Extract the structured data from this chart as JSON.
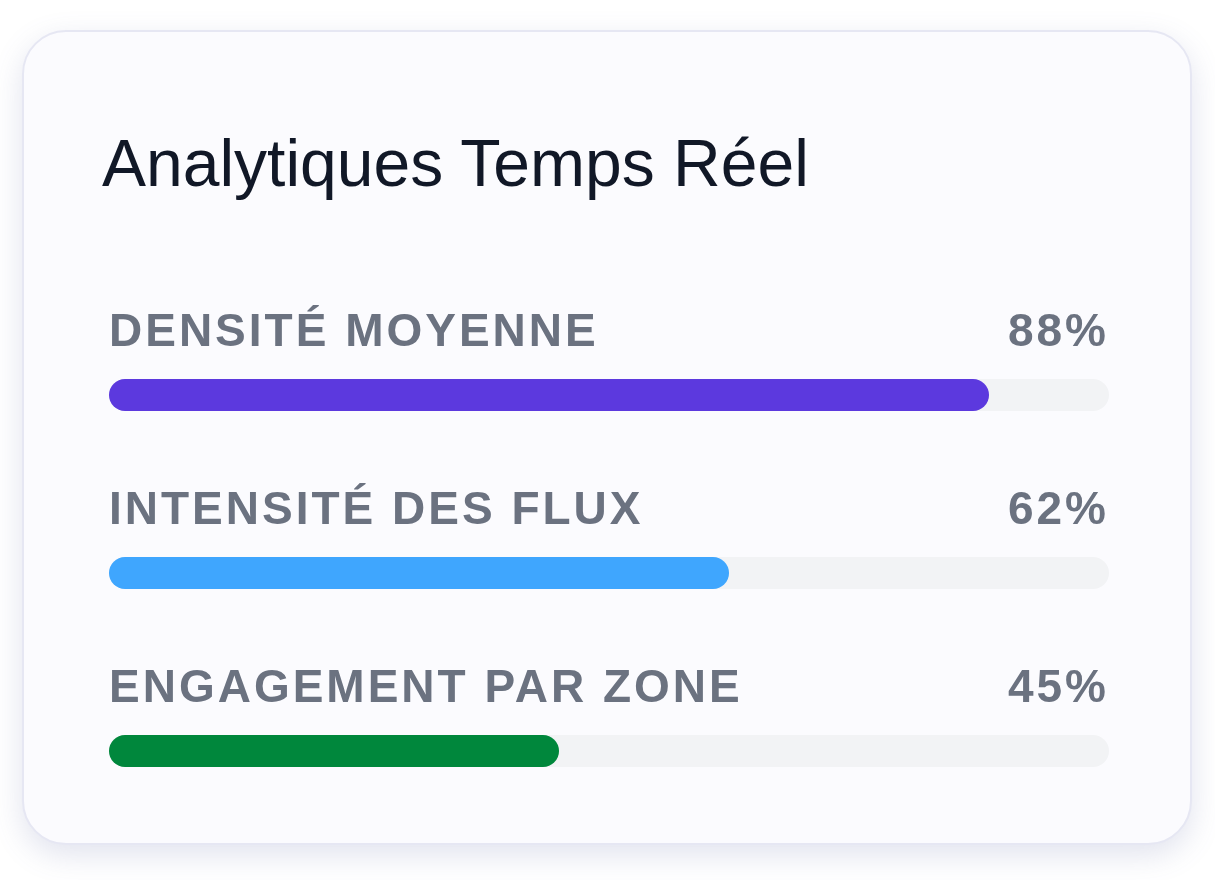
{
  "chart_data": {
    "type": "bar",
    "orientation": "horizontal",
    "title": "Analytiques Temps Réel",
    "categories": [
      "DENSITÉ MOYENNE",
      "INTENSITÉ DES FLUX",
      "ENGAGEMENT PAR ZONE"
    ],
    "values": [
      88,
      62,
      45
    ],
    "colors": [
      "#5c39de",
      "#3fa6fe",
      "#00873c"
    ],
    "value_labels": [
      "88%",
      "62%",
      "45%"
    ],
    "xlim": [
      0,
      100
    ],
    "tick_labels": "y"
  }
}
